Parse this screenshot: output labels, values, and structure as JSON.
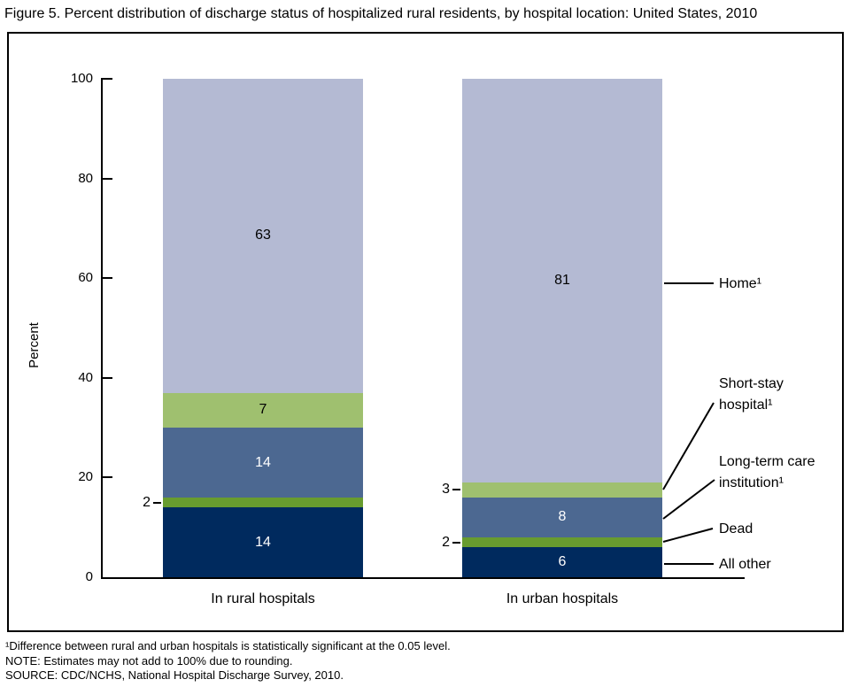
{
  "figure": {
    "title": "Figure 5. Percent distribution of discharge status of hospitalized rural residents, by hospital location: United States, 2010",
    "footnotes": [
      "¹Difference between rural and urban hospitals is statistically significant at the 0.05 level.",
      "NOTE: Estimates may not add to 100% due to rounding.",
      "SOURCE: CDC/NCHS, National Hospital Discharge Survey, 2010."
    ]
  },
  "chart_data": {
    "type": "bar",
    "stacked": true,
    "title": "Figure 5. Percent distribution of discharge status of hospitalized rural residents, by hospital location: United States, 2010",
    "xlabel": "",
    "ylabel": "Percent",
    "ylim": [
      0,
      100
    ],
    "yticks": [
      0,
      20,
      40,
      60,
      80,
      100
    ],
    "grid": false,
    "legend_position": "right-annotations",
    "categories": [
      "In rural hospitals",
      "In urban hospitals"
    ],
    "series": [
      {
        "name": "All other",
        "color": "#002a5e",
        "label_color": "#ffffff",
        "values": [
          14,
          6
        ]
      },
      {
        "name": "Dead",
        "color": "#689c2f",
        "label_color": "#ffffff",
        "values": [
          2,
          2
        ]
      },
      {
        "name": "Long-term care institution¹",
        "color": "#4c6891",
        "label_color": "#ffffff",
        "values": [
          14,
          8
        ]
      },
      {
        "name": "Short-stay hospital¹",
        "color": "#9fc06f",
        "label_color": "#000000",
        "values": [
          7,
          3
        ]
      },
      {
        "name": "Home¹",
        "color": "#b4bad3",
        "label_color": "#000000",
        "values": [
          63,
          81
        ]
      }
    ]
  }
}
